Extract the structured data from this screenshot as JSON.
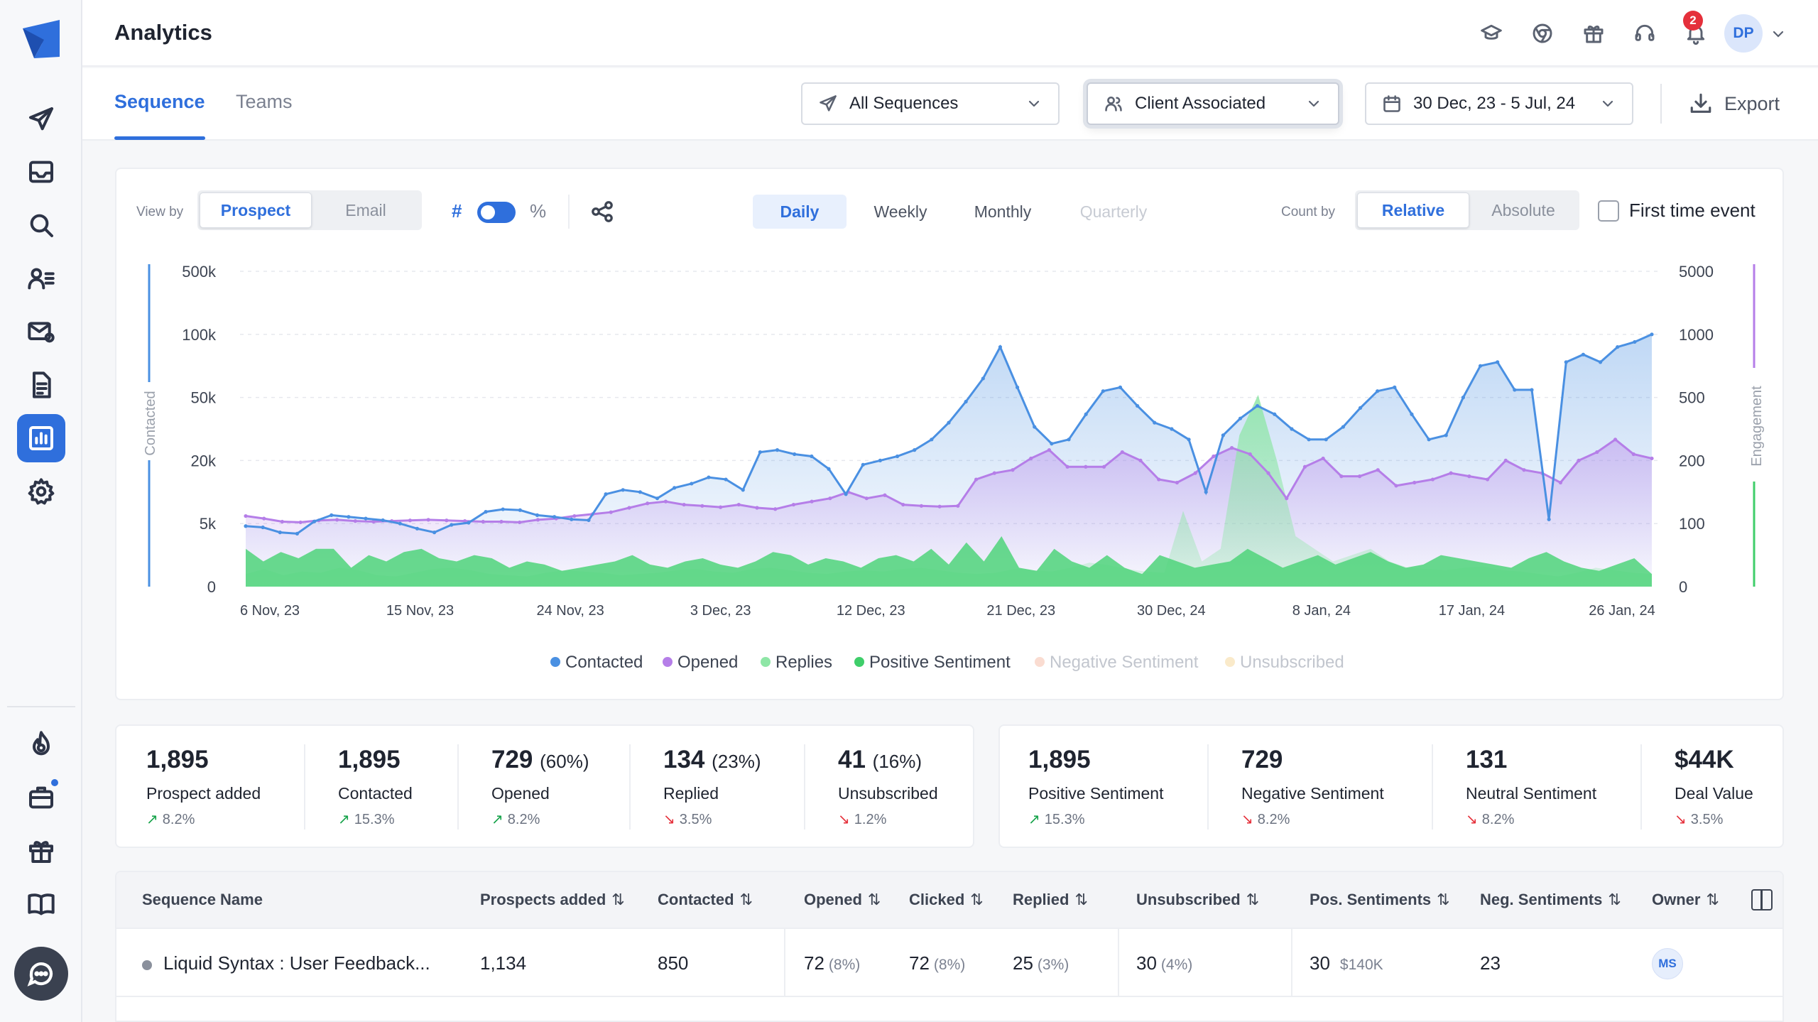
{
  "header": {
    "title": "Analytics",
    "notification_count": "2",
    "user_initials": "DP"
  },
  "tabs": {
    "sequence": "Sequence",
    "teams": "Teams"
  },
  "filters": {
    "sequences": "All Sequences",
    "client": "Client Associated",
    "date_range": "30 Dec, 23 - 5 Jul, 24",
    "export": "Export"
  },
  "controls": {
    "view_by_label": "View by",
    "view_prospect": "Prospect",
    "view_email": "Email",
    "hash": "#",
    "percent": "%",
    "period_daily": "Daily",
    "period_weekly": "Weekly",
    "period_monthly": "Monthly",
    "period_quarterly": "Quarterly",
    "count_by_label": "Count by",
    "count_relative": "Relative",
    "count_absolute": "Absolute",
    "first_time_event": "First time event"
  },
  "colors": {
    "contacted": "#4a90e2",
    "opened": "#b57ee8",
    "replies": "#8ee6a6",
    "positive_sentiment": "#3fce6a",
    "negative_sentiment": "#f6c4b2",
    "unsubscribed": "#f7dca6",
    "accent": "#2f6fdc"
  },
  "chart_data": {
    "type": "line",
    "left_axis_label": "Contacted",
    "right_axis_label": "Engagement",
    "left_ticks": [
      "500k",
      "100k",
      "50k",
      "20k",
      "5k",
      "0"
    ],
    "right_ticks": [
      "5000",
      "1000",
      "500",
      "200",
      "100",
      "0"
    ],
    "x_ticks": [
      "6 Nov, 23",
      "15 Nov, 23",
      "24 Nov, 23",
      "3 Dec, 23",
      "12 Dec, 23",
      "21 Dec, 23",
      "30 Dec, 24",
      "8 Jan, 24",
      "17 Jan, 24",
      "26 Jan, 24"
    ],
    "legend": [
      {
        "name": "Contacted",
        "color": "#4a90e2",
        "active": true
      },
      {
        "name": "Opened",
        "color": "#b57ee8",
        "active": true
      },
      {
        "name": "Replies",
        "color": "#8ee6a6",
        "active": true
      },
      {
        "name": "Positive Sentiment",
        "color": "#3fce6a",
        "active": true
      },
      {
        "name": "Negative Sentiment",
        "color": "#f6c4b2",
        "active": false
      },
      {
        "name": "Unsubscribed",
        "color": "#f7dca6",
        "active": false
      }
    ],
    "series": [
      {
        "name": "Contacted",
        "values": [
          4800,
          4700,
          4300,
          4200,
          5500,
          7000,
          6600,
          6200,
          5800,
          5000,
          4600,
          4300,
          4900,
          5200,
          7800,
          8400,
          8200,
          7000,
          6600,
          6000,
          5800,
          12000,
          13000,
          12500,
          11000,
          13500,
          14500,
          16000,
          15500,
          13000,
          24000,
          25000,
          23000,
          22000,
          18000,
          12000,
          19000,
          20000,
          22000,
          25000,
          30000,
          38000,
          48000,
          65000,
          90000,
          58000,
          36000,
          28000,
          30000,
          42000,
          55000,
          58000,
          46000,
          38000,
          35000,
          30000,
          12500,
          32000,
          40000,
          46000,
          42000,
          35000,
          30000,
          30000,
          36000,
          45000,
          55000,
          58000,
          42000,
          30000,
          32000,
          50000,
          75000,
          78000,
          56000,
          56000,
          6000,
          78000,
          84000,
          78000,
          90000,
          94000,
          100000
        ]
      },
      {
        "name": "Opened",
        "values": [
          112,
          108,
          103,
          102,
          105,
          106,
          104,
          103,
          104,
          105,
          106,
          105,
          104,
          103,
          103,
          102,
          106,
          108,
          112,
          115,
          118,
          125,
          132,
          135,
          130,
          128,
          126,
          130,
          125,
          123,
          130,
          135,
          140,
          150,
          140,
          145,
          130,
          128,
          127,
          128,
          170,
          180,
          185,
          210,
          250,
          190,
          190,
          190,
          240,
          200,
          170,
          165,
          180,
          220,
          260,
          230,
          180,
          140,
          190,
          210,
          175,
          175,
          185,
          160,
          165,
          170,
          180,
          175,
          170,
          200,
          185,
          180,
          165,
          200,
          240,
          300,
          230,
          210
        ]
      },
      {
        "name": "Replies",
        "values": [
          20,
          28,
          18,
          24,
          22,
          30,
          26,
          18,
          16,
          22,
          28,
          30,
          26,
          20,
          18,
          16,
          22,
          26,
          24,
          22,
          18,
          20,
          22,
          26,
          28,
          24,
          22,
          28,
          30,
          26,
          22,
          20,
          24,
          26,
          24,
          28,
          30,
          26,
          22,
          20,
          22,
          28,
          26,
          24,
          30,
          38,
          34,
          28,
          24,
          22,
          120,
          40,
          60,
          320,
          520,
          200,
          80,
          60,
          40,
          50,
          60,
          40,
          30,
          28,
          26,
          30,
          32,
          26,
          24,
          20,
          16,
          22,
          30,
          26,
          22,
          20
        ]
      },
      {
        "name": "Positive Sentiment",
        "values": [
          60,
          40,
          55,
          45,
          60,
          60,
          30,
          50,
          40,
          55,
          60,
          45,
          40,
          50,
          45,
          30,
          40,
          35,
          25,
          30,
          35,
          40,
          50,
          35,
          30,
          40,
          45,
          35,
          30,
          40,
          55,
          50,
          35,
          45,
          40,
          30,
          45,
          50,
          40,
          60,
          35,
          70,
          40,
          80,
          30,
          25,
          60,
          40,
          30,
          50,
          30,
          20,
          50,
          40,
          30,
          35,
          40,
          60,
          45,
          30,
          40,
          50,
          35,
          45,
          55,
          40,
          30,
          35,
          50,
          45,
          40,
          35,
          30,
          45,
          55,
          40,
          30,
          25,
          35,
          45,
          20
        ]
      }
    ]
  },
  "stats_left": [
    {
      "value": "1,895",
      "pct": "",
      "label": "Prospect added",
      "change": "8.2%",
      "dir": "up"
    },
    {
      "value": "1,895",
      "pct": "",
      "label": "Contacted",
      "change": "15.3%",
      "dir": "up"
    },
    {
      "value": "729",
      "pct": "(60%)",
      "label": "Opened",
      "change": "8.2%",
      "dir": "up"
    },
    {
      "value": "134",
      "pct": "(23%)",
      "label": "Replied",
      "change": "3.5%",
      "dir": "down"
    },
    {
      "value": "41",
      "pct": "(16%)",
      "label": "Unsubscribed",
      "change": "1.2%",
      "dir": "down"
    }
  ],
  "stats_right": [
    {
      "value": "1,895",
      "label": "Positive Sentiment",
      "change": "15.3%",
      "dir": "up"
    },
    {
      "value": "729",
      "label": "Negative Sentiment",
      "change": "8.2%",
      "dir": "down"
    },
    {
      "value": "131",
      "label": "Neutral Sentiment",
      "change": "8.2%",
      "dir": "down"
    },
    {
      "value": "$44K",
      "label": "Deal Value",
      "change": "3.5%",
      "dir": "down"
    }
  ],
  "table": {
    "headers": {
      "name": "Sequence Name",
      "prospects": "Prospects added",
      "contacted": "Contacted",
      "opened": "Opened",
      "clicked": "Clicked",
      "replied": "Replied",
      "unsubscribed": "Unsubscribed",
      "pos": "Pos. Sentiments",
      "neg": "Neg. Sentiments",
      "owner": "Owner",
      "sort_glyph": "⇅"
    },
    "rows": [
      {
        "name": "Liquid Syntax : User Feedback...",
        "prospects": "1,134",
        "contacted": "850",
        "opened": "72",
        "opened_pct": "(8%)",
        "clicked": "72",
        "clicked_pct": "(8%)",
        "replied": "25",
        "replied_pct": "(3%)",
        "unsubscribed": "30",
        "unsubscribed_pct": "(4%)",
        "pos": "30",
        "pos_value": "$140K",
        "neg": "23",
        "owner": "MS"
      }
    ]
  }
}
